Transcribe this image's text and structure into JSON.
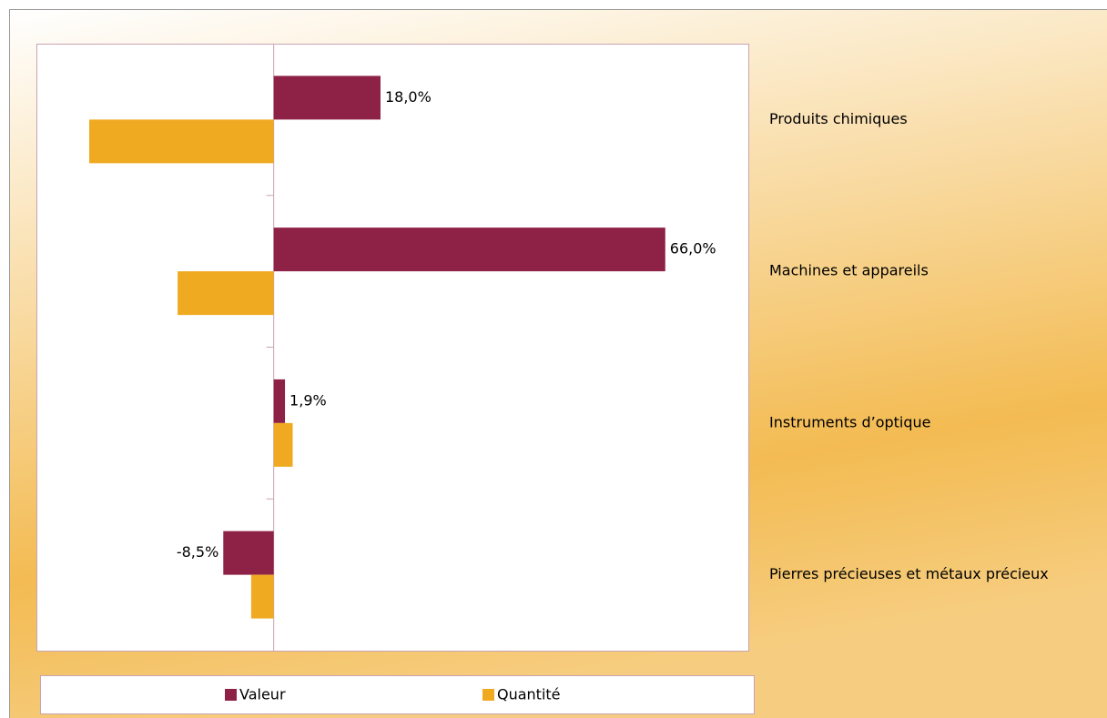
{
  "chart_data": {
    "type": "bar",
    "orientation": "horizontal",
    "categories": [
      "Produits chimiques",
      "Machines et appareils",
      "Instruments d’optique",
      "Pierres précieuses et métaux précieux"
    ],
    "series": [
      {
        "name": "Valeur",
        "color": "#8e2146",
        "values": [
          18.0,
          66.0,
          1.9,
          -8.5
        ],
        "value_labels": [
          "18,0%",
          "66,0%",
          "1,9%",
          "-8,5%"
        ]
      },
      {
        "name": "Quantité",
        "color": "#efaa22",
        "values": [
          -31.1,
          -16.2,
          3.2,
          -3.8
        ]
      }
    ],
    "xlim": [
      -40,
      80
    ],
    "legend": "bottom"
  }
}
